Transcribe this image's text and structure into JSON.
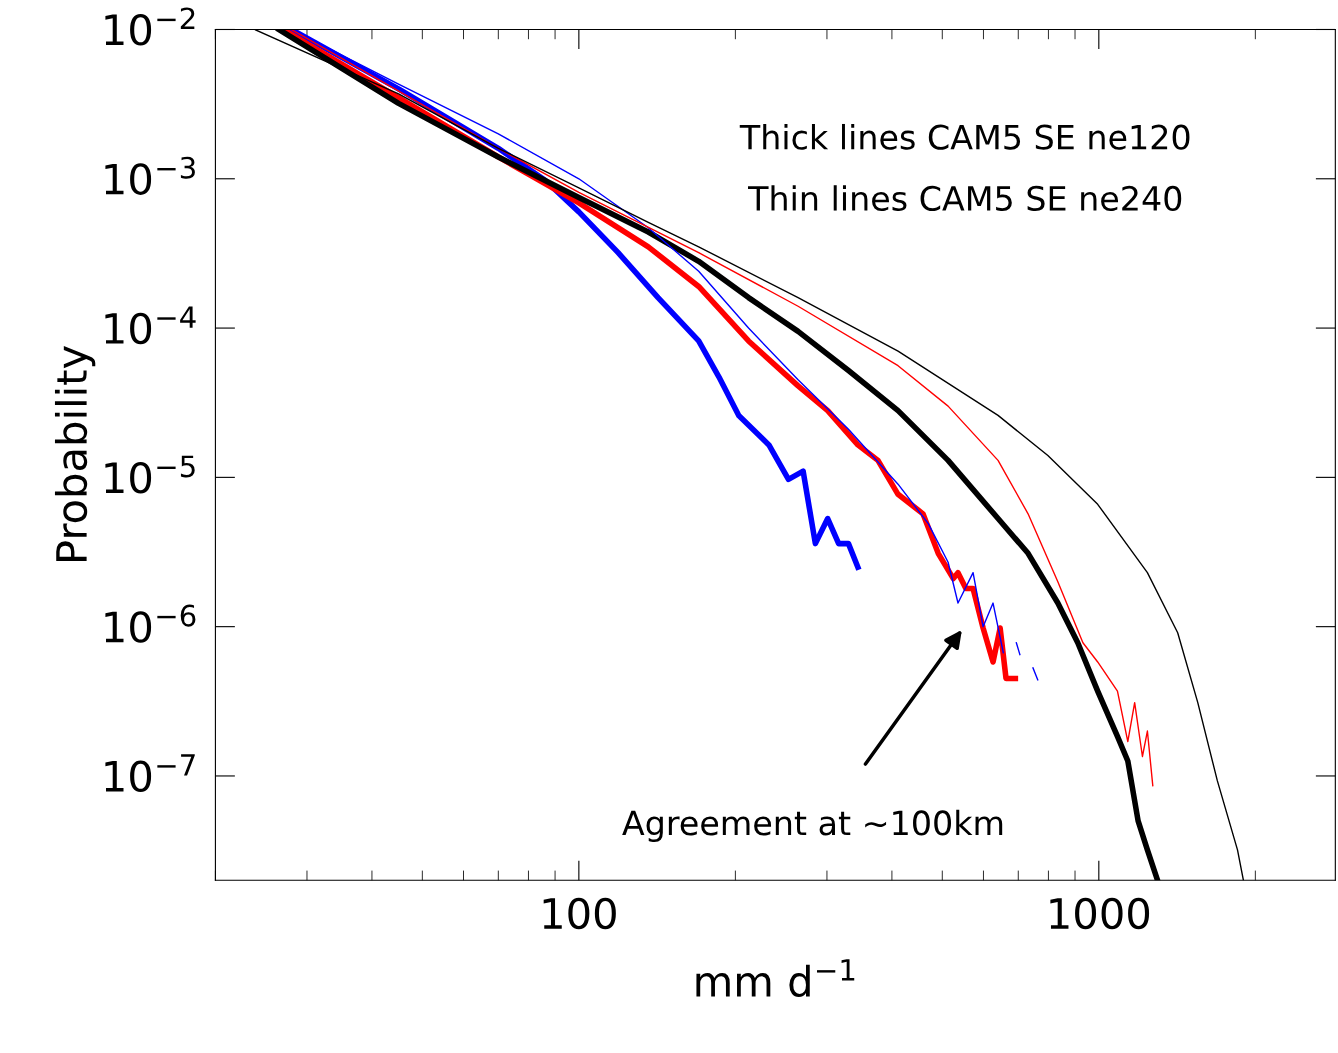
{
  "chart_data": {
    "type": "line",
    "xlabel": "mm d$^{−1}$",
    "ylabel": "Probability",
    "log": "xy",
    "xlim": [
      20,
      2850
    ],
    "ylim": [
      2e-08,
      0.01
    ],
    "xticks": [
      100,
      1000
    ],
    "yticks": [
      {
        "value": 0.01,
        "label": "10$^{−2}$"
      },
      {
        "value": 0.001,
        "label": "10$^{−3}$"
      },
      {
        "value": 0.0001,
        "label": "10$^{−4}$"
      },
      {
        "value": 1e-05,
        "label": "10$^{−5}$"
      },
      {
        "value": 1e-06,
        "label": "10$^{−6}$"
      },
      {
        "value": 1e-07,
        "label": "10$^{−7}$"
      }
    ],
    "grid": false,
    "legend": false,
    "marker": "none",
    "line_style": "solid",
    "series": [
      {
        "color": "#0000ff",
        "x": [
          28,
          45,
          70,
          86,
          100,
          119,
          142,
          170,
          186,
          203,
          232,
          253,
          270,
          285,
          301,
          316,
          330,
          344
        ],
        "values": [
          0.01,
          0.004,
          0.0016,
          0.00098,
          0.0006,
          0.00032,
          0.00016,
          8.2e-05,
          4.7e-05,
          2.6e-05,
          1.65e-05,
          9.7e-06,
          1.1e-05,
          3.6e-06,
          5.3e-06,
          3.6e-06,
          3.6e-06,
          2.5e-06
        ]
      },
      {
        "color": "#ff0000",
        "x": [
          27,
          45,
          70,
          100,
          136,
          170,
          212,
          264,
          301,
          344,
          376,
          411,
          459,
          491,
          525,
          536,
          555,
          573,
          599,
          626,
          646,
          663,
          691
        ],
        "values": [
          0.01,
          0.0035,
          0.0014,
          0.00069,
          0.00035,
          0.00019,
          8.2e-05,
          4.1e-05,
          2.8e-05,
          1.65e-05,
          1.3e-05,
          7.7e-06,
          5.7e-06,
          3.1e-06,
          2.1e-06,
          2.3e-06,
          1.8e-06,
          1.8e-06,
          9.8e-07,
          5.8e-07,
          9.8e-07,
          4.5e-07,
          4.5e-07
        ]
      },
      {
        "color": "#000000",
        "x": [
          26.5,
          45,
          70,
          100,
          136,
          170,
          212,
          264,
          330,
          411,
          513,
          640,
          731,
          834,
          911,
          995,
          1086,
          1137,
          1190,
          1240,
          1297
        ],
        "values": [
          0.01,
          0.0032,
          0.0014,
          0.00075,
          0.00044,
          0.00028,
          0.00016,
          9.5e-05,
          5.2e-05,
          2.8e-05,
          1.3e-05,
          5.3e-06,
          3.1e-06,
          1.44e-06,
          7.8e-07,
          3.7e-07,
          1.84e-07,
          1.26e-07,
          5e-08,
          3.2e-08,
          2e-08
        ]
      },
      {
        "color": "#0000ff",
        "x": [
          28,
          45,
          70,
          100,
          136,
          170,
          212,
          264,
          330,
          411,
          470,
          513,
          536,
          573,
          599,
          626,
          655,
          675,
          694,
          705,
          730,
          747,
          763
        ],
        "values": [
          0.01,
          0.0043,
          0.002,
          0.001,
          0.00047,
          0.00024,
          0.0001,
          4.5e-05,
          2.1e-05,
          9e-06,
          4.9e-06,
          2.7e-06,
          1.44e-06,
          2.3e-06,
          1e-06,
          1.44e-06,
          6.7e-07,
          null,
          7.8e-07,
          6.5e-07,
          null,
          5.3e-07,
          4.4e-07
        ]
      },
      {
        "color": "#ff0000",
        "x": [
          28,
          70,
          100,
          170,
          264,
          411,
          513,
          640,
          731,
          834,
          932,
          995,
          1086,
          1137,
          1172,
          1213,
          1240,
          1270
        ],
        "values": [
          0.01,
          0.0016,
          0.00081,
          0.00032,
          0.00014,
          5.6e-05,
          3e-05,
          1.3e-05,
          5.7e-06,
          2e-06,
          7.8e-07,
          5.8e-07,
          3.7e-07,
          1.7e-07,
          3.1e-07,
          1.35e-07,
          2e-07,
          8.6e-08
        ]
      },
      {
        "color": "#000000",
        "x": [
          23.8,
          45,
          70,
          100,
          136,
          170,
          264,
          411,
          640,
          798,
          995,
          1240,
          1418,
          1550,
          1690,
          1848,
          1897
        ],
        "values": [
          0.01,
          0.0037,
          0.0016,
          0.00087,
          0.00051,
          0.00035,
          0.00016,
          7e-05,
          2.6e-05,
          1.4e-05,
          6.6e-06,
          2.3e-06,
          9.1e-07,
          3.1e-07,
          9.3e-08,
          3.2e-08,
          2e-08
        ]
      }
    ],
    "annotations": [
      "Thick lines CAM5 SE ne120",
      "Thin lines CAM5 SE ne240",
      "Agreement at ~100km"
    ]
  }
}
